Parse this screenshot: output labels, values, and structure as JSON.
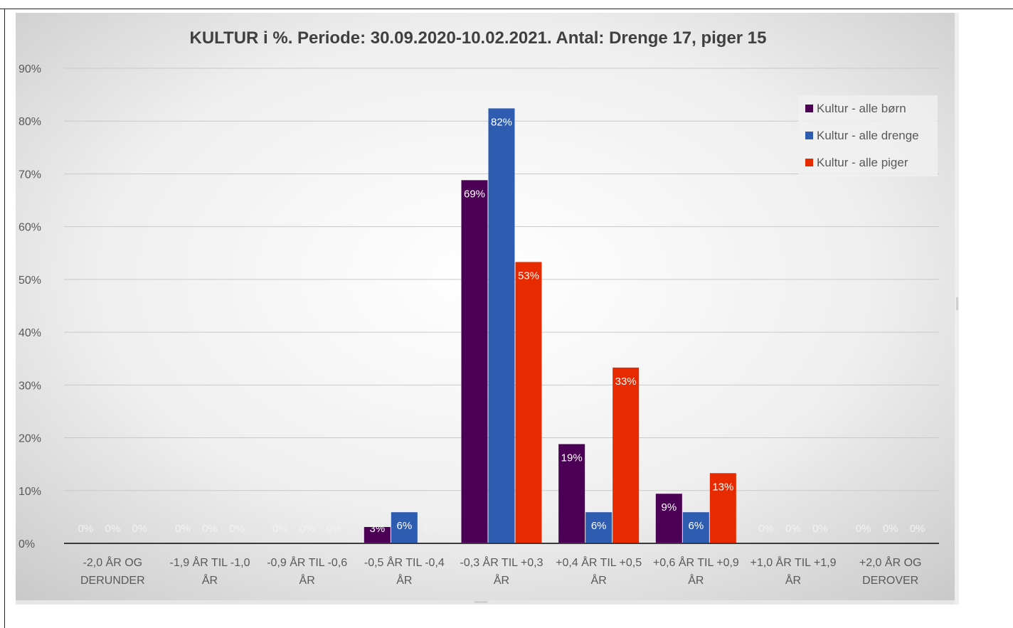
{
  "chart_data": {
    "type": "bar",
    "title": "KULTUR i %. Periode: 30.09.2020-10.02.2021. Antal: Drenge 17, piger 15",
    "xlabel": "",
    "ylabel": "",
    "ylim": [
      0,
      90
    ],
    "y_ticks": [
      0,
      10,
      20,
      30,
      40,
      50,
      60,
      70,
      80,
      90
    ],
    "y_tick_labels": [
      "0%",
      "10%",
      "20%",
      "30%",
      "40%",
      "50%",
      "60%",
      "70%",
      "80%",
      "90%"
    ],
    "grid": true,
    "legend_position": "top-right",
    "categories": [
      [
        "-2,0 ÅR OG",
        "DERUNDER"
      ],
      [
        "-1,9 ÅR TIL -1,0",
        "ÅR"
      ],
      [
        "-0,9 ÅR TIL -0,6",
        "ÅR"
      ],
      [
        "-0,5 ÅR TIL -0,4",
        "ÅR"
      ],
      [
        "-0,3 ÅR TIL +0,3",
        "ÅR"
      ],
      [
        "+0,4  ÅR TIL +0,5",
        "ÅR"
      ],
      [
        "+0,6  ÅR TIL +0,9",
        "ÅR"
      ],
      [
        "+1,0  ÅR TIL +1,9",
        "ÅR"
      ],
      [
        "+2,0 ÅR OG",
        "DEROVER"
      ]
    ],
    "series": [
      {
        "name": "Kultur - alle børn",
        "color": "#4b0055",
        "values": [
          0,
          0,
          0,
          3.1,
          68.8,
          18.8,
          9.4,
          0,
          0
        ],
        "labels": [
          "0%",
          "0%",
          "0%",
          "3%",
          "69%",
          "19%",
          "9%",
          "0%",
          "0%"
        ]
      },
      {
        "name": "Kultur - alle drenge",
        "color": "#2e5cb0",
        "values": [
          0,
          0,
          0,
          5.9,
          82.4,
          5.9,
          5.9,
          0,
          0
        ],
        "labels": [
          "0%",
          "0%",
          "0%",
          "6%",
          "82%",
          "6%",
          "6%",
          "0%",
          "0%"
        ]
      },
      {
        "name": "Kultur - alle piger",
        "color": "#e82a00",
        "values": [
          0,
          0,
          0,
          0,
          53.3,
          33.3,
          13.3,
          0,
          0
        ],
        "labels": [
          "0%",
          "0%",
          "0%",
          "0%",
          "53%",
          "33%",
          "13%",
          "0%",
          "0%"
        ]
      }
    ]
  }
}
